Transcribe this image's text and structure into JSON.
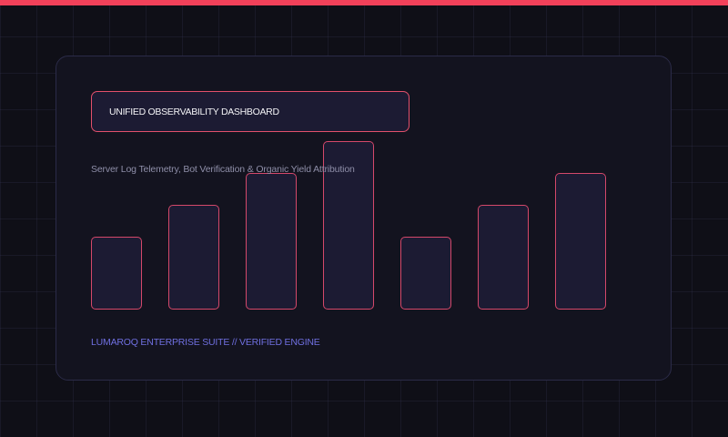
{
  "header": {
    "title": "UNIFIED OBSERVABILITY DASHBOARD",
    "subtitle": "Server Log Telemetry, Bot Verification & Organic Yield Attribution"
  },
  "footer": {
    "text": "LUMAROQ ENTERPRISE SUITE // VERIFIED ENGINE"
  },
  "colors": {
    "accent": "#f2415a",
    "bar_border": "#d4486a",
    "footer_text": "#6f6fe0"
  },
  "bars": {
    "levels": [
      1,
      2,
      3,
      4,
      1,
      2,
      3
    ],
    "max_level": 4
  }
}
